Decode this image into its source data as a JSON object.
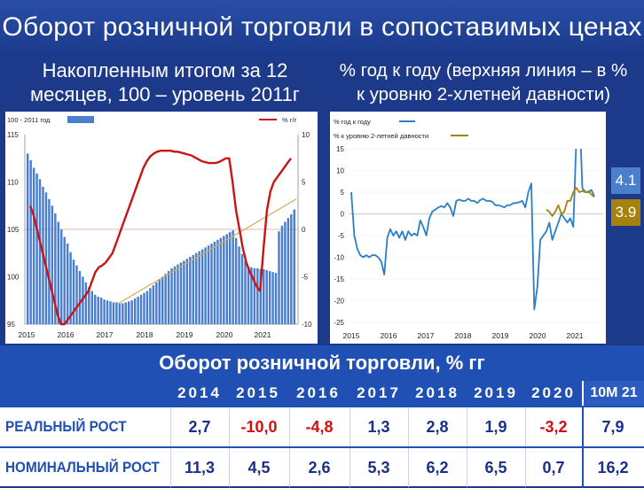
{
  "header": {
    "title": "Оборот розничной торговли в сопоставимых ценах",
    "left_subtitle_line1": "Накопленным итогом за 12",
    "left_subtitle_line2": "месяцев, 100 – уровень 2011г",
    "right_subtitle_line1": "% год к году (верхняя линия – в %",
    "right_subtitle_line2": "к уровню 2-хлетней давности)"
  },
  "chart_data": [
    {
      "type": "bar",
      "legend": [
        "100 - 2011 год",
        "% г/г"
      ],
      "x_tick_labels": [
        "2015",
        "2016",
        "2017",
        "2018",
        "2019",
        "2020",
        "2021"
      ],
      "y_left_ticks": [
        "115",
        "110",
        "105",
        "100",
        "95"
      ],
      "y_right_ticks": [
        "10",
        "5",
        "0",
        "-5",
        "-10"
      ],
      "ylim_left": [
        95,
        115
      ],
      "ylim_right": [
        -10,
        10
      ],
      "colors": {
        "bars": "#4a7fd0",
        "line": "#c81414",
        "trend": "#d6a85a"
      },
      "index_values": [
        113,
        112.3,
        111.5,
        110.9,
        110.3,
        109.5,
        108.9,
        108.2,
        107.5,
        106.7,
        105.8,
        105,
        104.2,
        103.5,
        102.6,
        101.8,
        101.2,
        100.6,
        100,
        99.4,
        98.9,
        98.5,
        98.1,
        97.9,
        97.8,
        97.6,
        97.5,
        97.4,
        97.3,
        97.3,
        97.2,
        97.2,
        97.3,
        97.4,
        97.5,
        97.7,
        97.9,
        98.1,
        98.3,
        98.5,
        98.8,
        99.1,
        99.4,
        99.7,
        100,
        100.3,
        100.6,
        100.9,
        101.1,
        101.3,
        101.5,
        101.7,
        101.9,
        102.1,
        102.3,
        102.5,
        102.7,
        102.9,
        103.1,
        103.3,
        103.5,
        103.7,
        103.9,
        104.1,
        104.3,
        104.5,
        104.7,
        104.9,
        104.1,
        103.2,
        102.4,
        101.7,
        101.1,
        101,
        100.9,
        100.9,
        100.8,
        100.8,
        100.7,
        100.6,
        100.5,
        100.4,
        104.8,
        105.4,
        105.8,
        106.2,
        106.6,
        107.1
      ],
      "yoy_values": [
        2.5,
        1.5,
        0,
        -1.5,
        -3,
        -4.5,
        -6,
        -7.5,
        -9,
        -10,
        -10,
        -9.5,
        -9,
        -8.5,
        -8,
        -7.5,
        -7,
        -6.5,
        -5.5,
        -4.5,
        -4,
        -3.8,
        -3.5,
        -3,
        -2.5,
        -1.5,
        -0.5,
        0.5,
        1.5,
        2.5,
        3.5,
        4.5,
        5.5,
        6.5,
        7.2,
        7.7,
        8,
        8.2,
        8.3,
        8.3,
        8.3,
        8.3,
        8.2,
        8.2,
        8.1,
        8,
        7.9,
        7.8,
        7.6,
        7.4,
        7.2,
        7.1,
        7,
        7,
        7,
        7.1,
        7.3,
        7.5,
        7.5,
        5,
        2,
        0,
        -2,
        -3.5,
        -4.5,
        -5.2,
        -6,
        -6.5,
        -2,
        2,
        4,
        5,
        5.5,
        6,
        6.5,
        7,
        7.5
      ]
    },
    {
      "type": "line",
      "legend": [
        "% год к году",
        "% к уровню 2-летней давности"
      ],
      "x_tick_labels": [
        "2015",
        "2016",
        "2017",
        "2018",
        "2019",
        "2020",
        "2021"
      ],
      "y_ticks": [
        "15",
        "10",
        "5",
        "0",
        "-5",
        "-10",
        "-15",
        "-20",
        "-25"
      ],
      "ylim": [
        -25,
        15
      ],
      "colors": {
        "yoy": "#2a7fc4",
        "two_year": "#a5820e"
      },
      "badge_yoy": "4.1",
      "badge_two_year": "3.9",
      "yoy_values": [
        5,
        -5,
        -8,
        -9.5,
        -10,
        -9.5,
        -10,
        -9.5,
        -9.5,
        -10,
        -11,
        -14,
        -5.5,
        -3.5,
        -5,
        -4,
        -5.5,
        -4,
        -6,
        -4,
        -5,
        -4.5,
        -5,
        -1.5,
        -3,
        -5,
        -1,
        0.5,
        1,
        1.5,
        1.8,
        1.5,
        2.5,
        1.5,
        -0.5,
        3,
        3.3,
        3,
        3,
        3.5,
        3,
        3,
        2.5,
        3.2,
        3.5,
        3,
        3,
        2.8,
        2,
        2,
        1.8,
        1.5,
        2,
        2,
        2.5,
        2.5,
        2.7,
        3,
        1.5,
        5,
        7,
        -22,
        -17,
        -6,
        -5,
        -4,
        -2,
        -6,
        -4,
        -2,
        0,
        -1,
        -2,
        -1,
        -3,
        17,
        25,
        6,
        5,
        5,
        5.5,
        4.1
      ],
      "two_year_values": [
        1,
        0.5,
        -0.5,
        0.5,
        2,
        0,
        0.5,
        3,
        3,
        5,
        6,
        5,
        5.3,
        5,
        5.2,
        4.5,
        3.9
      ]
    }
  ],
  "table": {
    "title": "Оборот розничной торговли, % гг",
    "years": [
      "2014",
      "2015",
      "2016",
      "2017",
      "2018",
      "2019",
      "2020"
    ],
    "last_col": "10М 21",
    "rows": [
      {
        "label": "РЕАЛЬНЫЙ РОСТ",
        "values": [
          "2,7",
          "-10,0",
          "-4,8",
          "1,3",
          "2,8",
          "1,9",
          "-3,2"
        ],
        "last": "7,9"
      },
      {
        "label": "НОМИНАЛЬНЫЙ РОСТ",
        "values": [
          "11,3",
          "4,5",
          "2,6",
          "5,3",
          "6,2",
          "6,5",
          "0,7"
        ],
        "last": "16,2"
      }
    ]
  }
}
